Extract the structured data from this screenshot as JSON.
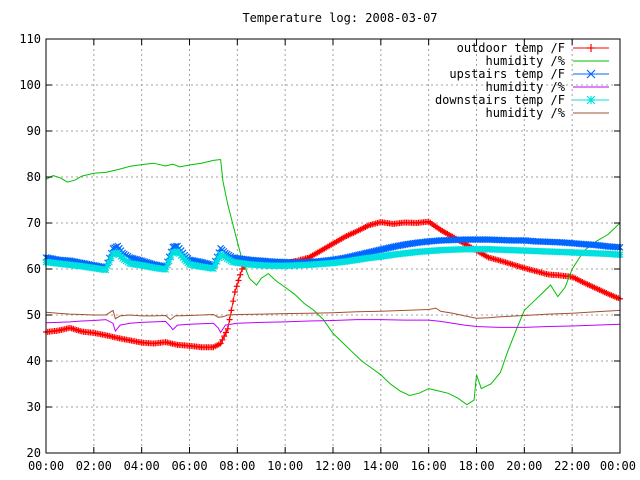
{
  "chart_data": {
    "type": "line",
    "title": "Temperature log: 2008-03-07",
    "xlabel": "",
    "ylabel": "",
    "xlim": [
      0,
      24
    ],
    "ylim": [
      20,
      110
    ],
    "grid": true,
    "legend_position": "top-right",
    "x_ticks": [
      "00:00",
      "02:00",
      "04:00",
      "06:00",
      "08:00",
      "10:00",
      "12:00",
      "14:00",
      "16:00",
      "18:00",
      "20:00",
      "22:00",
      "00:00"
    ],
    "y_ticks": [
      "20",
      "30",
      "40",
      "50",
      "60",
      "70",
      "80",
      "90",
      "100",
      "110"
    ],
    "series": [
      {
        "name": "outdoor temp /F",
        "color": "#ff0000",
        "marker": "plus",
        "points": [
          [
            0,
            46.3
          ],
          [
            0.5,
            46.6
          ],
          [
            1,
            47.2
          ],
          [
            1.5,
            46.4
          ],
          [
            2,
            46.1
          ],
          [
            2.5,
            45.6
          ],
          [
            3,
            45.0
          ],
          [
            3.5,
            44.5
          ],
          [
            4,
            44.0
          ],
          [
            4.5,
            43.8
          ],
          [
            5,
            44.1
          ],
          [
            5.5,
            43.5
          ],
          [
            6,
            43.3
          ],
          [
            6.5,
            43.0
          ],
          [
            7,
            43.0
          ],
          [
            7.3,
            43.8
          ],
          [
            7.6,
            47.0
          ],
          [
            7.9,
            55.0
          ],
          [
            8.2,
            60.0
          ],
          [
            8.5,
            62.0
          ],
          [
            9,
            61.5
          ],
          [
            9.5,
            61.2
          ],
          [
            10,
            61.3
          ],
          [
            10.5,
            61.8
          ],
          [
            11,
            62.5
          ],
          [
            11.5,
            64.0
          ],
          [
            12,
            65.5
          ],
          [
            12.5,
            67.0
          ],
          [
            13,
            68.2
          ],
          [
            13.5,
            69.5
          ],
          [
            14,
            70.2
          ],
          [
            14.5,
            69.8
          ],
          [
            15,
            70.1
          ],
          [
            15.5,
            70.0
          ],
          [
            16,
            70.3
          ],
          [
            16.5,
            68.5
          ],
          [
            17,
            67.0
          ],
          [
            17.5,
            65.5
          ],
          [
            18,
            64.0
          ],
          [
            18.5,
            62.5
          ],
          [
            19,
            61.8
          ],
          [
            19.5,
            61.0
          ],
          [
            20,
            60.2
          ],
          [
            20.5,
            59.5
          ],
          [
            21,
            58.8
          ],
          [
            21.5,
            58.6
          ],
          [
            22,
            58.3
          ],
          [
            22.5,
            57.0
          ],
          [
            23,
            55.8
          ],
          [
            23.5,
            54.6
          ],
          [
            24,
            53.5
          ]
        ]
      },
      {
        "name": "humidity /%",
        "color": "#00c000",
        "marker": "none",
        "points": [
          [
            0,
            79.5
          ],
          [
            0.3,
            80.3
          ],
          [
            0.6,
            79.8
          ],
          [
            0.9,
            78.9
          ],
          [
            1.2,
            79.3
          ],
          [
            1.5,
            80.2
          ],
          [
            2,
            80.8
          ],
          [
            2.5,
            81.0
          ],
          [
            3,
            81.6
          ],
          [
            3.5,
            82.3
          ],
          [
            4,
            82.7
          ],
          [
            4.5,
            83.0
          ],
          [
            5,
            82.4
          ],
          [
            5.3,
            82.8
          ],
          [
            5.6,
            82.2
          ],
          [
            6,
            82.6
          ],
          [
            6.5,
            83.0
          ],
          [
            7,
            83.6
          ],
          [
            7.3,
            83.8
          ],
          [
            7.4,
            79.0
          ],
          [
            7.6,
            74.0
          ],
          [
            7.9,
            68.0
          ],
          [
            8.2,
            62.0
          ],
          [
            8.5,
            58.0
          ],
          [
            8.8,
            56.5
          ],
          [
            9,
            58.0
          ],
          [
            9.3,
            59.0
          ],
          [
            9.6,
            57.5
          ],
          [
            10,
            56.0
          ],
          [
            10.4,
            54.5
          ],
          [
            10.8,
            52.5
          ],
          [
            11.2,
            51.0
          ],
          [
            11.6,
            49.0
          ],
          [
            12,
            46.0
          ],
          [
            12.4,
            44.0
          ],
          [
            12.8,
            42.0
          ],
          [
            13.2,
            40.0
          ],
          [
            13.6,
            38.5
          ],
          [
            14,
            37.0
          ],
          [
            14.4,
            35.0
          ],
          [
            14.8,
            33.5
          ],
          [
            15.2,
            32.5
          ],
          [
            15.6,
            33.0
          ],
          [
            16,
            34.0
          ],
          [
            16.4,
            33.5
          ],
          [
            16.8,
            33.0
          ],
          [
            17.2,
            32.0
          ],
          [
            17.6,
            30.5
          ],
          [
            17.9,
            31.5
          ],
          [
            18,
            37.0
          ],
          [
            18.2,
            34.0
          ],
          [
            18.6,
            35.0
          ],
          [
            19,
            37.5
          ],
          [
            19.3,
            42.0
          ],
          [
            19.6,
            46.0
          ],
          [
            20,
            51.0
          ],
          [
            20.4,
            53.0
          ],
          [
            20.8,
            55.0
          ],
          [
            21.1,
            56.5
          ],
          [
            21.4,
            54.0
          ],
          [
            21.7,
            56.0
          ],
          [
            22,
            60.0
          ],
          [
            22.5,
            64.0
          ],
          [
            23,
            66.0
          ],
          [
            23.5,
            67.5
          ],
          [
            24,
            70.0
          ]
        ]
      },
      {
        "name": "upstairs temp /F",
        "color": "#0066ff",
        "marker": "x",
        "points": [
          [
            0,
            62.5
          ],
          [
            0.5,
            62.0
          ],
          [
            1,
            61.8
          ],
          [
            1.5,
            61.3
          ],
          [
            2,
            60.8
          ],
          [
            2.5,
            60.3
          ],
          [
            2.8,
            64.5
          ],
          [
            3,
            65.0
          ],
          [
            3.2,
            63.5
          ],
          [
            3.5,
            62.5
          ],
          [
            4,
            61.8
          ],
          [
            4.5,
            61.0
          ],
          [
            5,
            60.5
          ],
          [
            5.3,
            64.8
          ],
          [
            5.5,
            65.0
          ],
          [
            5.8,
            63.0
          ],
          [
            6,
            62.0
          ],
          [
            6.5,
            61.5
          ],
          [
            7,
            60.8
          ],
          [
            7.3,
            64.5
          ],
          [
            7.5,
            63.5
          ],
          [
            7.8,
            62.5
          ],
          [
            8.5,
            62.0
          ],
          [
            9,
            61.8
          ],
          [
            9.5,
            61.6
          ],
          [
            10,
            61.5
          ],
          [
            10.5,
            61.4
          ],
          [
            11,
            61.5
          ],
          [
            11.5,
            61.7
          ],
          [
            12,
            62.0
          ],
          [
            12.5,
            62.4
          ],
          [
            13,
            63.0
          ],
          [
            13.5,
            63.6
          ],
          [
            14,
            64.2
          ],
          [
            14.5,
            64.8
          ],
          [
            15,
            65.3
          ],
          [
            15.5,
            65.7
          ],
          [
            16,
            66.0
          ],
          [
            16.5,
            66.2
          ],
          [
            17,
            66.3
          ],
          [
            17.5,
            66.4
          ],
          [
            18,
            66.4
          ],
          [
            18.5,
            66.4
          ],
          [
            19,
            66.3
          ],
          [
            19.5,
            66.2
          ],
          [
            20,
            66.2
          ],
          [
            20.5,
            66.0
          ],
          [
            21,
            65.9
          ],
          [
            21.5,
            65.8
          ],
          [
            22,
            65.6
          ],
          [
            22.5,
            65.4
          ],
          [
            23,
            65.2
          ],
          [
            23.5,
            64.9
          ],
          [
            24,
            64.7
          ]
        ]
      },
      {
        "name": "humidity /%",
        "color": "#c000ff",
        "marker": "none",
        "points": [
          [
            0,
            48.3
          ],
          [
            0.5,
            48.4
          ],
          [
            1,
            48.5
          ],
          [
            1.5,
            48.7
          ],
          [
            2,
            48.8
          ],
          [
            2.5,
            49.0
          ],
          [
            2.8,
            48.2
          ],
          [
            2.9,
            46.5
          ],
          [
            3.1,
            47.8
          ],
          [
            3.5,
            48.2
          ],
          [
            4,
            48.4
          ],
          [
            4.5,
            48.5
          ],
          [
            5,
            48.6
          ],
          [
            5.2,
            47.5
          ],
          [
            5.3,
            46.8
          ],
          [
            5.5,
            47.8
          ],
          [
            6,
            48.0
          ],
          [
            6.5,
            48.1
          ],
          [
            7,
            48.2
          ],
          [
            7.2,
            47.2
          ],
          [
            7.3,
            46.2
          ],
          [
            7.5,
            47.8
          ],
          [
            8,
            48.2
          ],
          [
            9,
            48.4
          ],
          [
            10,
            48.5
          ],
          [
            11,
            48.7
          ],
          [
            12,
            48.8
          ],
          [
            13,
            49.0
          ],
          [
            14,
            49.0
          ],
          [
            15,
            48.9
          ],
          [
            16,
            48.9
          ],
          [
            16.5,
            48.6
          ],
          [
            17,
            48.2
          ],
          [
            17.5,
            47.8
          ],
          [
            18,
            47.5
          ],
          [
            18.5,
            47.4
          ],
          [
            19,
            47.3
          ],
          [
            20,
            47.3
          ],
          [
            21,
            47.5
          ],
          [
            22,
            47.6
          ],
          [
            23,
            47.8
          ],
          [
            24,
            48.0
          ]
        ]
      },
      {
        "name": "downstairs temp /F",
        "color": "#00e0e0",
        "marker": "star",
        "points": [
          [
            0,
            61.5
          ],
          [
            0.5,
            61.2
          ],
          [
            1,
            60.9
          ],
          [
            1.5,
            60.6
          ],
          [
            2,
            60.2
          ],
          [
            2.5,
            59.8
          ],
          [
            2.8,
            63.2
          ],
          [
            3,
            63.5
          ],
          [
            3.2,
            62.3
          ],
          [
            3.5,
            61.2
          ],
          [
            4,
            60.8
          ],
          [
            4.5,
            60.3
          ],
          [
            5,
            59.9
          ],
          [
            5.3,
            63.5
          ],
          [
            5.5,
            63.8
          ],
          [
            5.8,
            62.0
          ],
          [
            6,
            61.0
          ],
          [
            6.5,
            60.5
          ],
          [
            7,
            60.1
          ],
          [
            7.3,
            63.2
          ],
          [
            7.5,
            62.5
          ],
          [
            7.8,
            61.5
          ],
          [
            8.5,
            61.0
          ],
          [
            9,
            60.8
          ],
          [
            9.5,
            60.7
          ],
          [
            10,
            60.7
          ],
          [
            10.5,
            60.8
          ],
          [
            11,
            60.9
          ],
          [
            11.5,
            61.1
          ],
          [
            12,
            61.3
          ],
          [
            12.5,
            61.6
          ],
          [
            13,
            62.0
          ],
          [
            13.5,
            62.4
          ],
          [
            14,
            62.7
          ],
          [
            14.5,
            63.1
          ],
          [
            15,
            63.4
          ],
          [
            15.5,
            63.7
          ],
          [
            16,
            63.9
          ],
          [
            16.5,
            64.1
          ],
          [
            17,
            64.2
          ],
          [
            17.5,
            64.3
          ],
          [
            18,
            64.3
          ],
          [
            18.5,
            64.3
          ],
          [
            19,
            64.2
          ],
          [
            19.5,
            64.1
          ],
          [
            20,
            64.0
          ],
          [
            20.5,
            63.9
          ],
          [
            21,
            63.8
          ],
          [
            21.5,
            63.7
          ],
          [
            22,
            63.6
          ],
          [
            22.5,
            63.5
          ],
          [
            23,
            63.4
          ],
          [
            23.5,
            63.3
          ],
          [
            24,
            63.1
          ]
        ]
      },
      {
        "name": "humidity /%",
        "color": "#a0522d",
        "marker": "none",
        "points": [
          [
            0,
            50.6
          ],
          [
            0.5,
            50.4
          ],
          [
            1,
            50.2
          ],
          [
            1.5,
            50.1
          ],
          [
            2,
            50.0
          ],
          [
            2.5,
            50.0
          ],
          [
            2.8,
            51.0
          ],
          [
            2.9,
            49.2
          ],
          [
            3.1,
            49.8
          ],
          [
            3.5,
            50.0
          ],
          [
            4,
            49.8
          ],
          [
            4.5,
            49.8
          ],
          [
            5,
            49.9
          ],
          [
            5.2,
            49.0
          ],
          [
            5.4,
            49.8
          ],
          [
            6,
            49.9
          ],
          [
            6.5,
            50.0
          ],
          [
            7,
            50.1
          ],
          [
            7.2,
            49.5
          ],
          [
            7.4,
            49.6
          ],
          [
            7.6,
            50.0
          ],
          [
            8,
            50.1
          ],
          [
            9,
            50.2
          ],
          [
            10,
            50.3
          ],
          [
            11,
            50.4
          ],
          [
            12,
            50.5
          ],
          [
            13,
            50.7
          ],
          [
            14,
            50.8
          ],
          [
            15,
            51.0
          ],
          [
            16,
            51.2
          ],
          [
            16.3,
            51.5
          ],
          [
            16.5,
            50.8
          ],
          [
            17,
            50.4
          ],
          [
            17.5,
            49.8
          ],
          [
            18,
            49.3
          ],
          [
            18.5,
            49.4
          ],
          [
            19,
            49.6
          ],
          [
            20,
            49.9
          ],
          [
            21,
            50.2
          ],
          [
            22,
            50.4
          ],
          [
            23,
            50.7
          ],
          [
            24,
            51.0
          ]
        ]
      }
    ]
  }
}
